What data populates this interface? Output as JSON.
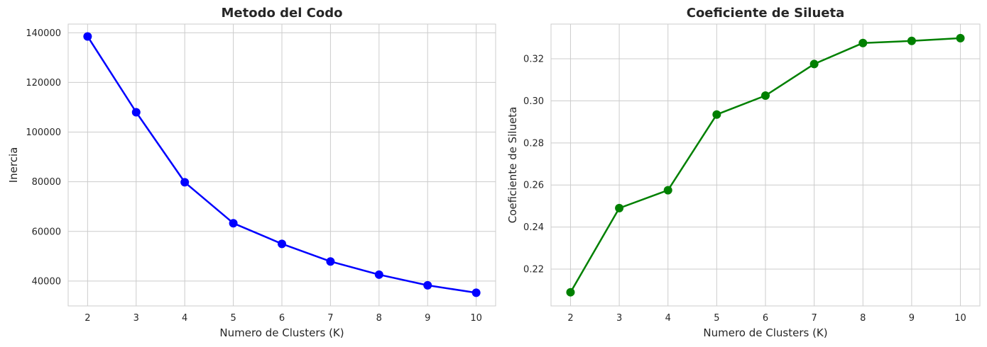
{
  "chart_data": [
    {
      "type": "line",
      "title": "Metodo del Codo",
      "xlabel": "Numero de Clusters (K)",
      "ylabel": "Inercia",
      "x": [
        2,
        3,
        4,
        5,
        6,
        7,
        8,
        9,
        10
      ],
      "xticks": [
        "2",
        "3",
        "4",
        "5",
        "6",
        "7",
        "8",
        "9",
        "10"
      ],
      "yticks": [
        40000,
        60000,
        80000,
        100000,
        120000,
        140000
      ],
      "ylim": [
        30000,
        143500
      ],
      "xlim": [
        1.6,
        10.4
      ],
      "grid": true,
      "series": [
        {
          "values": [
            138500,
            108000,
            79800,
            63300,
            55000,
            47900,
            42600,
            38300,
            35300
          ],
          "color": "#0000ff"
        }
      ]
    },
    {
      "type": "line",
      "title": "Coeficiente de Silueta",
      "xlabel": "Numero de Clusters (K)",
      "ylabel": "Coeficiente de Silueta",
      "x": [
        2,
        3,
        4,
        5,
        6,
        7,
        8,
        9,
        10
      ],
      "xticks": [
        "2",
        "3",
        "4",
        "5",
        "6",
        "7",
        "8",
        "9",
        "10"
      ],
      "yticks": [
        0.22,
        0.24,
        0.26,
        0.28,
        0.3,
        0.32
      ],
      "ylim": [
        0.2025,
        0.3365
      ],
      "xlim": [
        1.6,
        10.4
      ],
      "grid": true,
      "series": [
        {
          "values": [
            0.209,
            0.249,
            0.2575,
            0.2935,
            0.3025,
            0.3175,
            0.3275,
            0.3285,
            0.3298
          ],
          "color": "#008000"
        }
      ]
    }
  ]
}
